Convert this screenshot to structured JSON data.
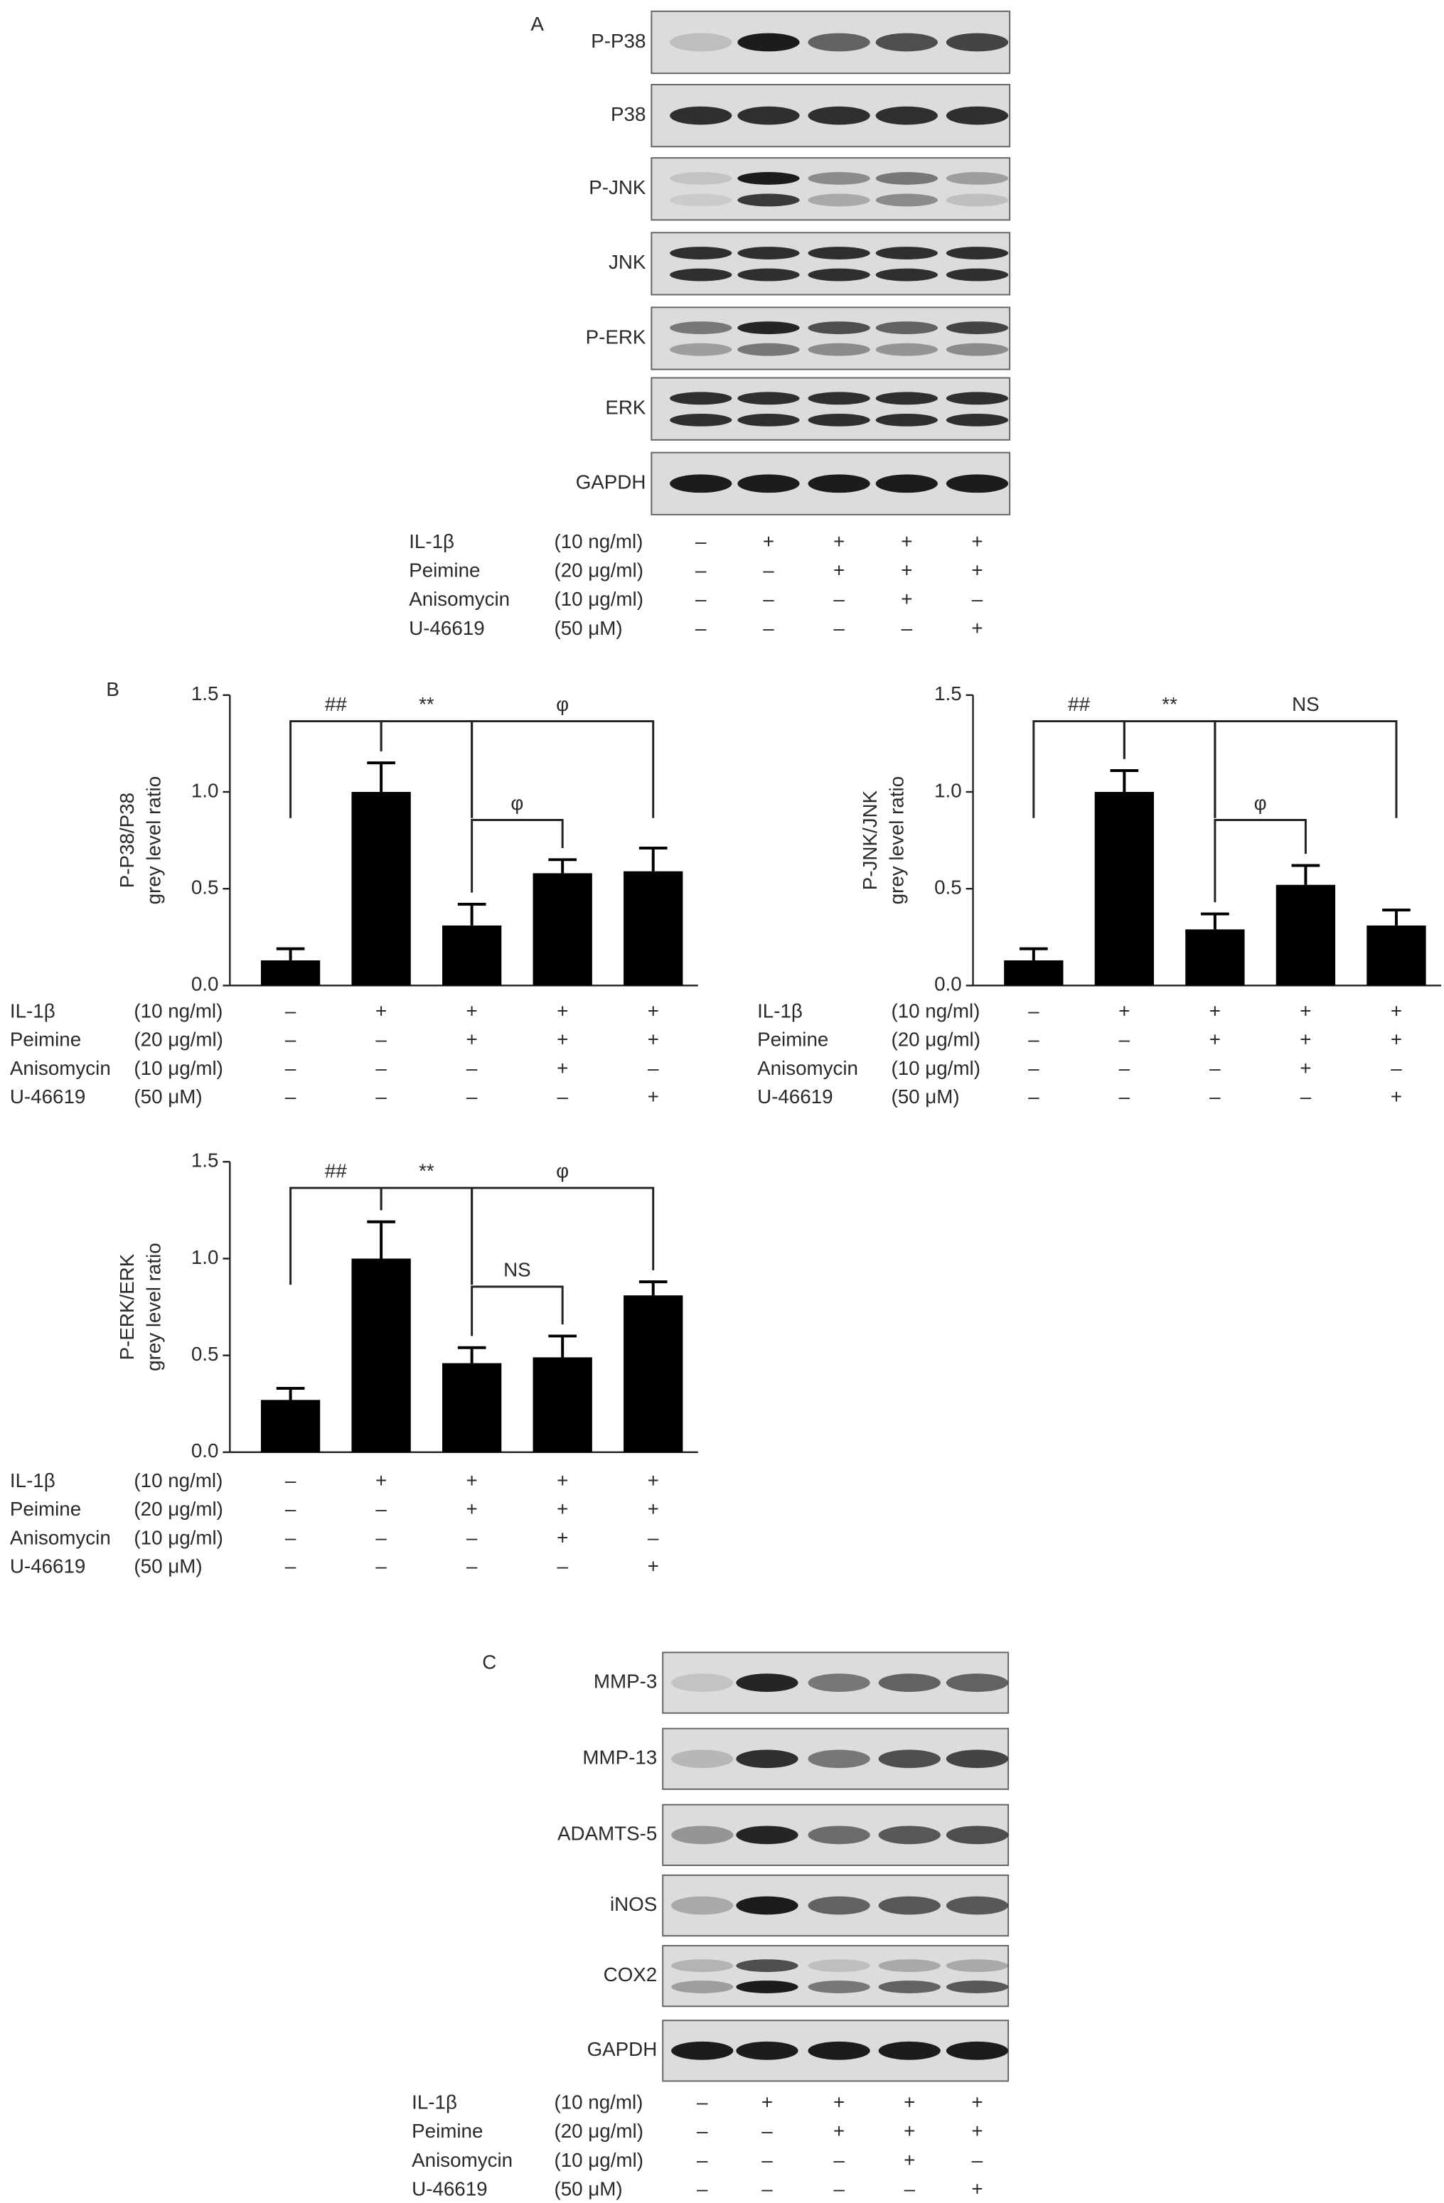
{
  "figure": {
    "panel_labels": [
      "A",
      "B",
      "C"
    ]
  },
  "blot_a": {
    "rows": [
      "P-P38",
      "P38",
      "P-JNK",
      "JNK",
      "P-ERK",
      "ERK",
      "GAPDH"
    ]
  },
  "blot_c": {
    "rows": [
      "MMP-3",
      "MMP-13",
      "ADAMTS-5",
      "iNOS",
      "COX2",
      "GAPDH"
    ]
  },
  "treatments": {
    "rows": [
      {
        "name": "IL-1β",
        "dose": "(10 ng/ml)",
        "signs": [
          "–",
          "+",
          "+",
          "+",
          "+"
        ]
      },
      {
        "name": "Peimine",
        "dose": "(20 μg/ml)",
        "signs": [
          "–",
          "–",
          "+",
          "+",
          "+"
        ]
      },
      {
        "name": "Anisomycin",
        "dose": "(10 μg/ml)",
        "signs": [
          "–",
          "–",
          "–",
          "+",
          "–"
        ]
      },
      {
        "name": "U-46619",
        "dose": "(50 μM)",
        "signs": [
          "–",
          "–",
          "–",
          "–",
          "+"
        ]
      }
    ]
  },
  "chart_data": [
    {
      "type": "bar",
      "y_label": [
        "P-P38/P38",
        "grey level ratio"
      ],
      "series": [
        {
          "color": "#000000",
          "values": [
            0.13,
            1.0,
            0.31,
            0.58,
            0.59
          ],
          "errors": [
            0.06,
            0.15,
            0.11,
            0.07,
            0.12
          ]
        }
      ],
      "ylim": [
        0,
        1.5
      ],
      "yticks": [
        {
          "value": 0,
          "label": "0.0"
        },
        0.5,
        {
          "value": 1,
          "label": "1.0"
        },
        1.5
      ],
      "annotations": [
        {
          "label": "##",
          "groups": [
            0,
            1
          ]
        },
        {
          "label": "**",
          "groups": [
            1,
            2
          ]
        },
        {
          "label": "φ",
          "groups": [
            2,
            4
          ]
        },
        {
          "label": "φ",
          "groups": [
            2,
            3
          ]
        }
      ]
    },
    {
      "type": "bar",
      "y_label": [
        "P-JNK/JNK",
        "grey level ratio"
      ],
      "series": [
        {
          "color": "#000000",
          "values": [
            0.13,
            1.0,
            0.29,
            0.52,
            0.31
          ],
          "errors": [
            0.06,
            0.11,
            0.08,
            0.1,
            0.08
          ]
        }
      ],
      "ylim": [
        0,
        1.5
      ],
      "yticks": [
        {
          "value": 0,
          "label": "0.0"
        },
        0.5,
        {
          "value": 1,
          "label": "1.0"
        },
        1.5
      ],
      "annotations": [
        {
          "label": "##",
          "groups": [
            0,
            1
          ]
        },
        {
          "label": "**",
          "groups": [
            1,
            2
          ]
        },
        {
          "label": "NS",
          "groups": [
            2,
            4
          ]
        },
        {
          "label": "φ",
          "groups": [
            2,
            3
          ]
        }
      ]
    },
    {
      "type": "bar",
      "y_label": [
        "P-ERK/ERK",
        "grey level ratio"
      ],
      "series": [
        {
          "color": "#000000",
          "values": [
            0.27,
            1.0,
            0.46,
            0.49,
            0.81
          ],
          "errors": [
            0.06,
            0.19,
            0.08,
            0.11,
            0.07
          ]
        }
      ],
      "ylim": [
        0,
        1.5
      ],
      "yticks": [
        {
          "value": 0,
          "label": "0.0"
        },
        0.5,
        {
          "value": 1,
          "label": "1.0"
        },
        1.5
      ],
      "annotations": [
        {
          "label": "##",
          "groups": [
            0,
            1
          ]
        },
        {
          "label": "**",
          "groups": [
            1,
            2
          ]
        },
        {
          "label": "φ",
          "groups": [
            2,
            4
          ]
        },
        {
          "label": "NS",
          "groups": [
            2,
            3
          ]
        }
      ]
    }
  ]
}
